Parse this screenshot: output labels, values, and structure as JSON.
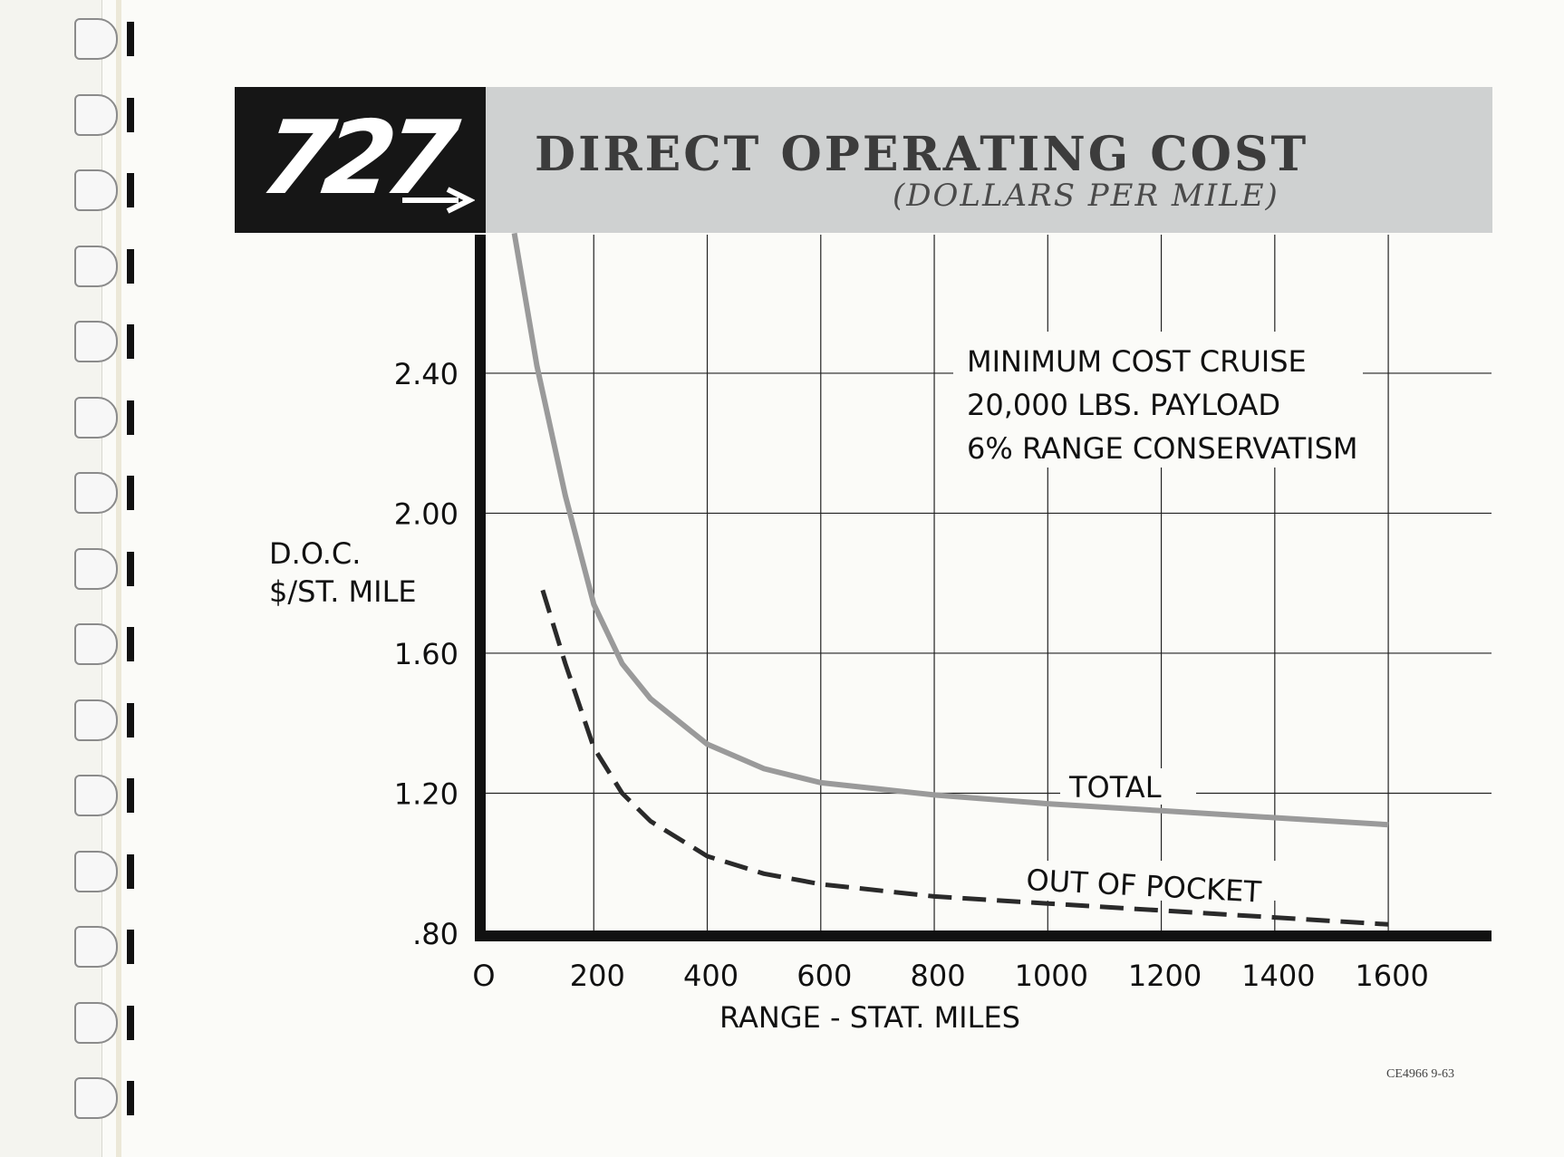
{
  "header": {
    "logo": "727",
    "title": "DIRECT OPERATING COST",
    "subtitle": "(DOLLARS PER MILE)"
  },
  "footer": {
    "code": "CE4966  9-63"
  },
  "chart_data": {
    "type": "line",
    "title": "DIRECT OPERATING COST",
    "subtitle": "(DOLLARS PER MILE)",
    "xlabel": "RANGE - STAT. MILES",
    "ylabel": [
      "D.O.C.",
      "$/ST. MILE"
    ],
    "xlim": [
      0,
      1800
    ],
    "ylim": [
      0.8,
      2.8
    ],
    "x_ticks": [
      0,
      200,
      400,
      600,
      800,
      1000,
      1200,
      1400,
      1600
    ],
    "x_tick_labels": [
      "O",
      "200",
      "400",
      "600",
      "800",
      "1000",
      "1200",
      "1400",
      "1600"
    ],
    "y_ticks": [
      0.8,
      1.2,
      1.6,
      2.0,
      2.4
    ],
    "y_tick_labels": [
      ".80",
      "1.20",
      "1.60",
      "2.00",
      "2.40"
    ],
    "grid": true,
    "annotations": [
      "MINIMUM COST CRUISE",
      "20,000 LBS. PAYLOAD",
      "6% RANGE CONSERVATISM"
    ],
    "series": [
      {
        "name": "TOTAL",
        "style": "solid",
        "color": "#9a9a9a",
        "x": [
          60,
          100,
          150,
          200,
          250,
          300,
          400,
          500,
          600,
          800,
          1000,
          1200,
          1400,
          1600
        ],
        "y": [
          2.8,
          2.42,
          2.05,
          1.74,
          1.57,
          1.47,
          1.34,
          1.27,
          1.23,
          1.195,
          1.17,
          1.15,
          1.13,
          1.11
        ]
      },
      {
        "name": "OUT OF POCKET",
        "style": "dashed",
        "color": "#2a2a2a",
        "x": [
          110,
          150,
          200,
          250,
          300,
          400,
          500,
          600,
          800,
          1000,
          1200,
          1400,
          1600
        ],
        "y": [
          1.78,
          1.57,
          1.33,
          1.2,
          1.12,
          1.02,
          0.97,
          0.94,
          0.905,
          0.885,
          0.865,
          0.845,
          0.825
        ]
      }
    ]
  }
}
